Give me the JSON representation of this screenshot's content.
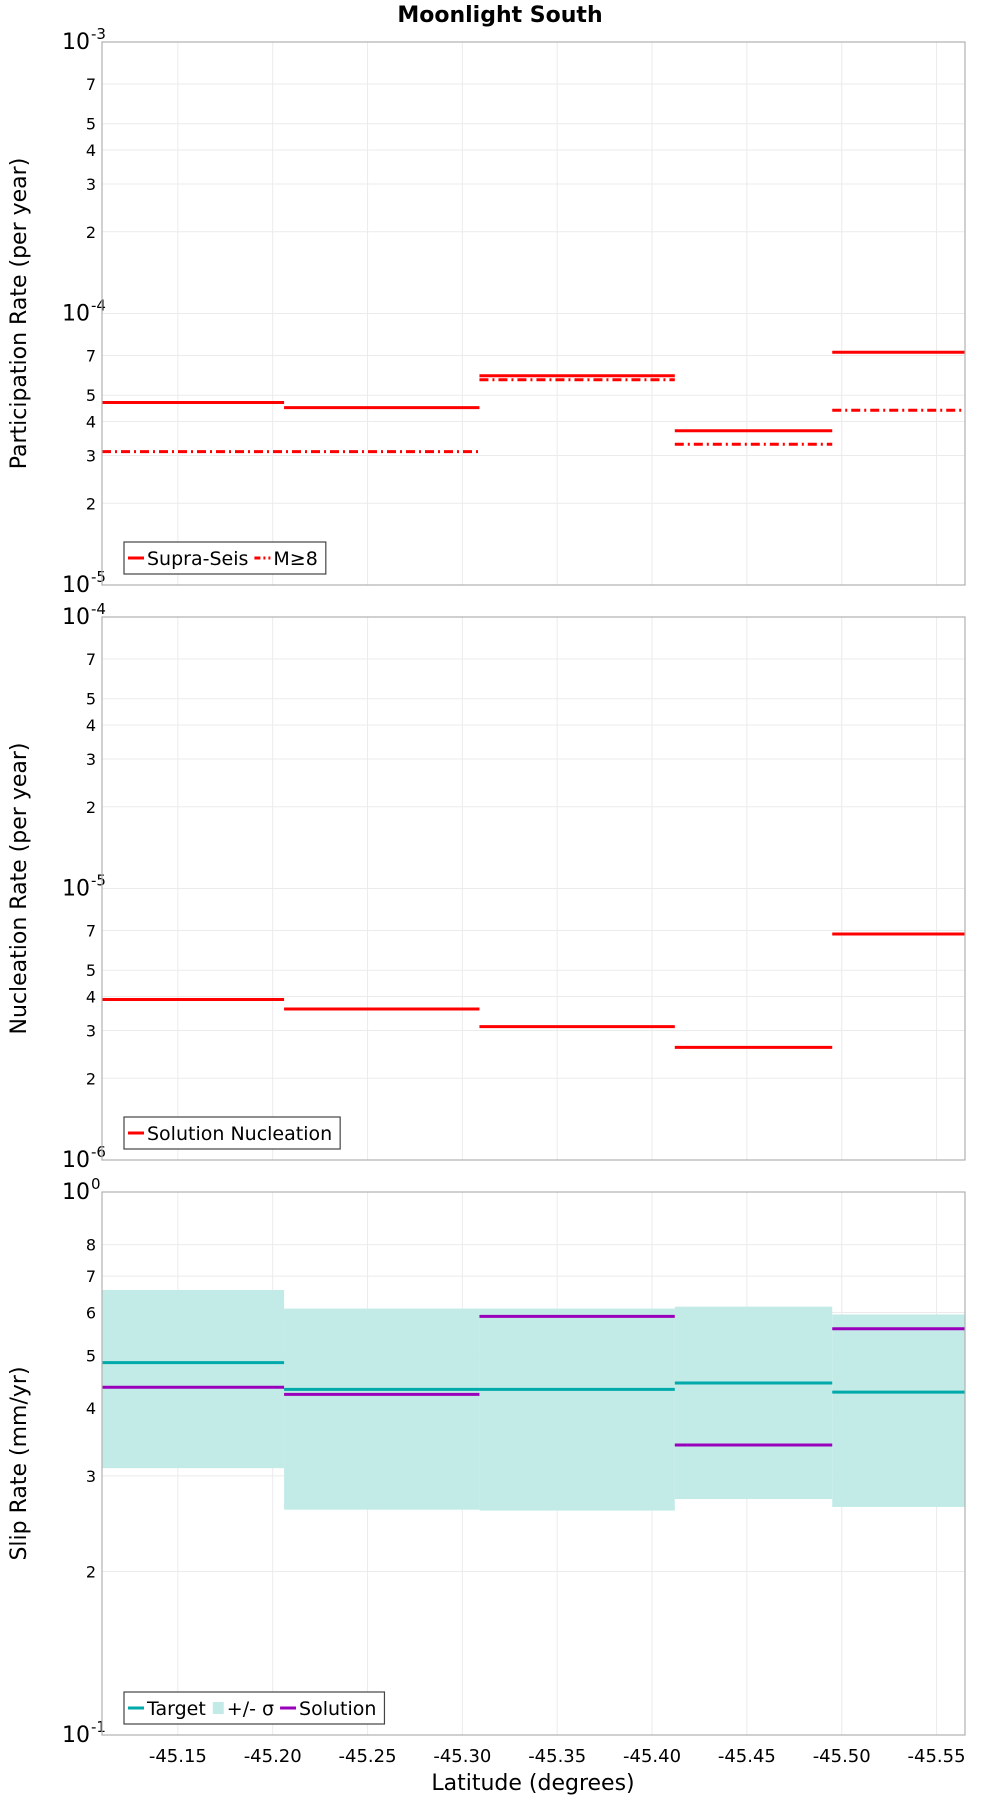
{
  "title": "Moonlight South",
  "xlabel": "Latitude (degrees)",
  "x_ticks": [
    "-45.15",
    "-45.20",
    "-45.25",
    "-45.30",
    "-45.35",
    "-45.40",
    "-45.45",
    "-45.50",
    "-45.55"
  ],
  "colors": {
    "red": "#ff0000",
    "target": "#00aaaa",
    "sigma_fill": "#c2ebe8",
    "solution": "#9900bb",
    "grid": "#ebebeb",
    "frame": "#b0b0b0"
  },
  "chart_data": [
    {
      "type": "line",
      "subtype": "step",
      "ylabel": "Participation Rate (per year)",
      "yscale": "log",
      "ylim": [
        1e-05,
        0.001
      ],
      "xlim": [
        -45.11,
        -45.565
      ],
      "grid": true,
      "legend_position": "bottom-left",
      "y_ticks": {
        "decades": [
          {
            "value": 0.001,
            "base": "10",
            "exp": "-3"
          },
          {
            "value": 0.0001,
            "base": "10",
            "exp": "-4"
          },
          {
            "value": 1e-05,
            "base": "10",
            "exp": "-5"
          }
        ],
        "minor": [
          {
            "value": 0.0007,
            "label": "7"
          },
          {
            "value": 0.0005,
            "label": "5"
          },
          {
            "value": 0.0004,
            "label": "4"
          },
          {
            "value": 0.0003,
            "label": "3"
          },
          {
            "value": 0.0002,
            "label": "2"
          },
          {
            "value": 7e-05,
            "label": "7"
          },
          {
            "value": 5e-05,
            "label": "5"
          },
          {
            "value": 4e-05,
            "label": "4"
          },
          {
            "value": 3e-05,
            "label": "3"
          },
          {
            "value": 2e-05,
            "label": "2"
          }
        ]
      },
      "series": [
        {
          "name": "Supra-Seis",
          "style": "solid",
          "color": "#ff0000",
          "segments": [
            {
              "x0": -45.11,
              "x1": -45.206,
              "y": 4.7e-05
            },
            {
              "x0": -45.206,
              "x1": -45.309,
              "y": 4.5e-05
            },
            {
              "x0": -45.309,
              "x1": -45.412,
              "y": 5.9e-05
            },
            {
              "x0": -45.412,
              "x1": -45.495,
              "y": 3.7e-05
            },
            {
              "x0": -45.495,
              "x1": -45.565,
              "y": 7.2e-05
            }
          ]
        },
        {
          "name": "M≥8",
          "style": "dashdot",
          "color": "#ff0000",
          "segments": [
            {
              "x0": -45.11,
              "x1": -45.309,
              "y": 3.1e-05
            },
            {
              "x0": -45.309,
              "x1": -45.412,
              "y": 5.7e-05
            },
            {
              "x0": -45.412,
              "x1": -45.495,
              "y": 3.3e-05
            },
            {
              "x0": -45.495,
              "x1": -45.565,
              "y": 4.4e-05
            }
          ]
        }
      ]
    },
    {
      "type": "line",
      "subtype": "step",
      "ylabel": "Nucleation Rate (per year)",
      "yscale": "log",
      "ylim": [
        1e-06,
        0.0001
      ],
      "xlim": [
        -45.11,
        -45.565
      ],
      "grid": true,
      "legend_position": "bottom-left",
      "y_ticks": {
        "decades": [
          {
            "value": 0.0001,
            "base": "10",
            "exp": "-4"
          },
          {
            "value": 1e-05,
            "base": "10",
            "exp": "-5"
          },
          {
            "value": 1e-06,
            "base": "10",
            "exp": "-6"
          }
        ],
        "minor": [
          {
            "value": 7e-05,
            "label": "7"
          },
          {
            "value": 5e-05,
            "label": "5"
          },
          {
            "value": 4e-05,
            "label": "4"
          },
          {
            "value": 3e-05,
            "label": "3"
          },
          {
            "value": 2e-05,
            "label": "2"
          },
          {
            "value": 7e-06,
            "label": "7"
          },
          {
            "value": 5e-06,
            "label": "5"
          },
          {
            "value": 4e-06,
            "label": "4"
          },
          {
            "value": 3e-06,
            "label": "3"
          },
          {
            "value": 2e-06,
            "label": "2"
          }
        ]
      },
      "series": [
        {
          "name": "Solution Nucleation",
          "style": "solid",
          "color": "#ff0000",
          "segments": [
            {
              "x0": -45.11,
              "x1": -45.206,
              "y": 3.9e-06
            },
            {
              "x0": -45.206,
              "x1": -45.309,
              "y": 3.6e-06
            },
            {
              "x0": -45.309,
              "x1": -45.412,
              "y": 3.1e-06
            },
            {
              "x0": -45.412,
              "x1": -45.495,
              "y": 2.6e-06
            },
            {
              "x0": -45.495,
              "x1": -45.565,
              "y": 6.8e-06
            }
          ]
        }
      ]
    },
    {
      "type": "line",
      "subtype": "step",
      "ylabel": "Slip Rate (mm/yr)",
      "yscale": "log",
      "ylim": [
        0.1,
        1
      ],
      "xlim": [
        -45.11,
        -45.565
      ],
      "grid": true,
      "legend_position": "bottom-left",
      "y_ticks": {
        "decades": [
          {
            "value": 1,
            "base": "10",
            "exp": "0"
          },
          {
            "value": 0.1,
            "base": "10",
            "exp": "-1"
          }
        ],
        "minor": [
          {
            "value": 0.8,
            "label": "8"
          },
          {
            "value": 0.7,
            "label": "7"
          },
          {
            "value": 0.6,
            "label": "6"
          },
          {
            "value": 0.5,
            "label": "5"
          },
          {
            "value": 0.4,
            "label": "4"
          },
          {
            "value": 0.3,
            "label": "3"
          },
          {
            "value": 0.2,
            "label": "2"
          }
        ]
      },
      "bands": [
        {
          "name": "+/- σ",
          "color": "#c2ebe8",
          "segments": [
            {
              "x0": -45.11,
              "x1": -45.206,
              "low": 0.31,
              "high": 0.66
            },
            {
              "x0": -45.206,
              "x1": -45.309,
              "low": 0.26,
              "high": 0.61
            },
            {
              "x0": -45.309,
              "x1": -45.412,
              "low": 0.259,
              "high": 0.61
            },
            {
              "x0": -45.412,
              "x1": -45.495,
              "low": 0.272,
              "high": 0.615
            },
            {
              "x0": -45.495,
              "x1": -45.565,
              "low": 0.263,
              "high": 0.595
            }
          ]
        }
      ],
      "series": [
        {
          "name": "Target",
          "style": "solid",
          "color": "#00aaaa",
          "segments": [
            {
              "x0": -45.11,
              "x1": -45.206,
              "y": 0.485
            },
            {
              "x0": -45.206,
              "x1": -45.309,
              "y": 0.433
            },
            {
              "x0": -45.309,
              "x1": -45.412,
              "y": 0.433
            },
            {
              "x0": -45.412,
              "x1": -45.495,
              "y": 0.445
            },
            {
              "x0": -45.495,
              "x1": -45.565,
              "y": 0.428
            }
          ]
        },
        {
          "name": "Solution",
          "style": "solid",
          "color": "#9900bb",
          "segments": [
            {
              "x0": -45.11,
              "x1": -45.206,
              "y": 0.437
            },
            {
              "x0": -45.206,
              "x1": -45.309,
              "y": 0.424
            },
            {
              "x0": -45.309,
              "x1": -45.412,
              "y": 0.59
            },
            {
              "x0": -45.412,
              "x1": -45.495,
              "y": 0.342
            },
            {
              "x0": -45.495,
              "x1": -45.565,
              "y": 0.56
            }
          ]
        }
      ]
    }
  ]
}
